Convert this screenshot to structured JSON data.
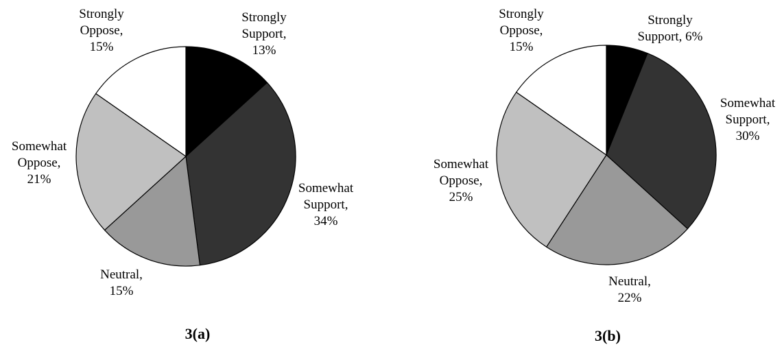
{
  "chart_data": [
    {
      "type": "pie",
      "caption": "3(a)",
      "start": "12 o'clock, clockwise",
      "slices": [
        {
          "category": "Strongly Support",
          "value": 13,
          "label_lines": [
            "Strongly",
            "Support,",
            "13%"
          ],
          "color": "#000000"
        },
        {
          "category": "Somewhat Support",
          "value": 34,
          "label_lines": [
            "Somewhat",
            "Support,",
            "34%"
          ],
          "color": "#333333"
        },
        {
          "category": "Neutral",
          "value": 15,
          "label_lines": [
            "Neutral,",
            "15%"
          ],
          "color": "#999999"
        },
        {
          "category": "Somewhat Oppose",
          "value": 21,
          "label_lines": [
            "Somewhat",
            "Oppose,",
            "21%"
          ],
          "color": "#c0c0c0"
        },
        {
          "category": "Strongly Oppose",
          "value": 15,
          "label_lines": [
            "Strongly",
            "Oppose,",
            "15%"
          ],
          "color": "#ffffff"
        }
      ]
    },
    {
      "type": "pie",
      "caption": "3(b)",
      "start": "12 o'clock, clockwise",
      "slices": [
        {
          "category": "Strongly Support",
          "value": 6,
          "label_lines": [
            "Strongly",
            "Support, 6%"
          ],
          "color": "#000000"
        },
        {
          "category": "Somewhat Support",
          "value": 30,
          "label_lines": [
            "Somewhat",
            "Support,",
            "30%"
          ],
          "color": "#333333"
        },
        {
          "category": "Neutral",
          "value": 22,
          "label_lines": [
            "Neutral,",
            "22%"
          ],
          "color": "#999999"
        },
        {
          "category": "Somewhat Oppose",
          "value": 25,
          "label_lines": [
            "Somewhat",
            "Oppose,",
            "25%"
          ],
          "color": "#c0c0c0"
        },
        {
          "category": "Strongly Oppose",
          "value": 15,
          "label_lines": [
            "Strongly",
            "Oppose,",
            "15%"
          ],
          "color": "#ffffff"
        }
      ]
    }
  ]
}
